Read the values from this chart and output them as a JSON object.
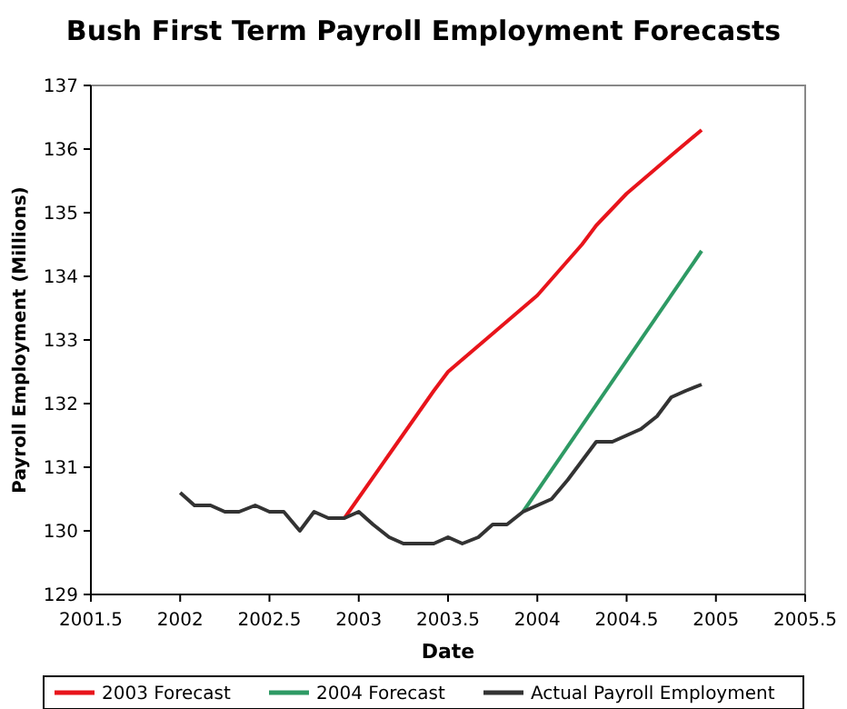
{
  "chart_data": {
    "type": "line",
    "title": "Bush First Term Payroll Employment Forecasts",
    "xlabel": "Date",
    "ylabel": "Payroll Employment (Millions)",
    "xlim": [
      2001.5,
      2005.5
    ],
    "xticks": [
      2001.5,
      2002,
      2002.5,
      2003,
      2003.5,
      2004,
      2004.5,
      2005,
      2005.5
    ],
    "ylim": [
      129,
      137
    ],
    "yticks": [
      129,
      130,
      131,
      132,
      133,
      134,
      135,
      136,
      137
    ],
    "grid": false,
    "legend": "bottom",
    "marker": "none",
    "line_style": "solid",
    "series": [
      {
        "name": "2003 Forecast",
        "color": "#e8141b",
        "x": [
          2002.92,
          2003.17,
          2003.42,
          2003.5,
          2003.75,
          2004,
          2004.25,
          2004.33,
          2004.5,
          2004.75,
          2004.92
        ],
        "values": [
          130.2,
          131.2,
          132.2,
          132.5,
          133.1,
          133.7,
          134.5,
          134.8,
          135.3,
          135.9,
          136.3
        ]
      },
      {
        "name": "2004 Forecast",
        "color": "#2e9a64",
        "x": [
          2003.92,
          2004.92
        ],
        "values": [
          130.3,
          134.4
        ]
      },
      {
        "name": "Actual Payroll Employment",
        "color": "#333333",
        "x": [
          2002,
          2002.08,
          2002.17,
          2002.25,
          2002.33,
          2002.42,
          2002.5,
          2002.58,
          2002.67,
          2002.75,
          2002.83,
          2002.92,
          2003,
          2003.08,
          2003.17,
          2003.25,
          2003.33,
          2003.42,
          2003.5,
          2003.58,
          2003.67,
          2003.75,
          2003.83,
          2003.92,
          2004,
          2004.08,
          2004.17,
          2004.25,
          2004.33,
          2004.42,
          2004.5,
          2004.58,
          2004.67,
          2004.75,
          2004.83,
          2004.92
        ],
        "values": [
          130.6,
          130.4,
          130.4,
          130.3,
          130.3,
          130.4,
          130.3,
          130.3,
          130,
          130.3,
          130.2,
          130.2,
          130.3,
          130.1,
          129.9,
          129.8,
          129.8,
          129.8,
          129.9,
          129.8,
          129.9,
          130.1,
          130.1,
          130.3,
          130.4,
          130.5,
          130.8,
          131.1,
          131.4,
          131.4,
          131.5,
          131.6,
          131.8,
          132.1,
          132.2,
          132.3
        ]
      }
    ]
  }
}
